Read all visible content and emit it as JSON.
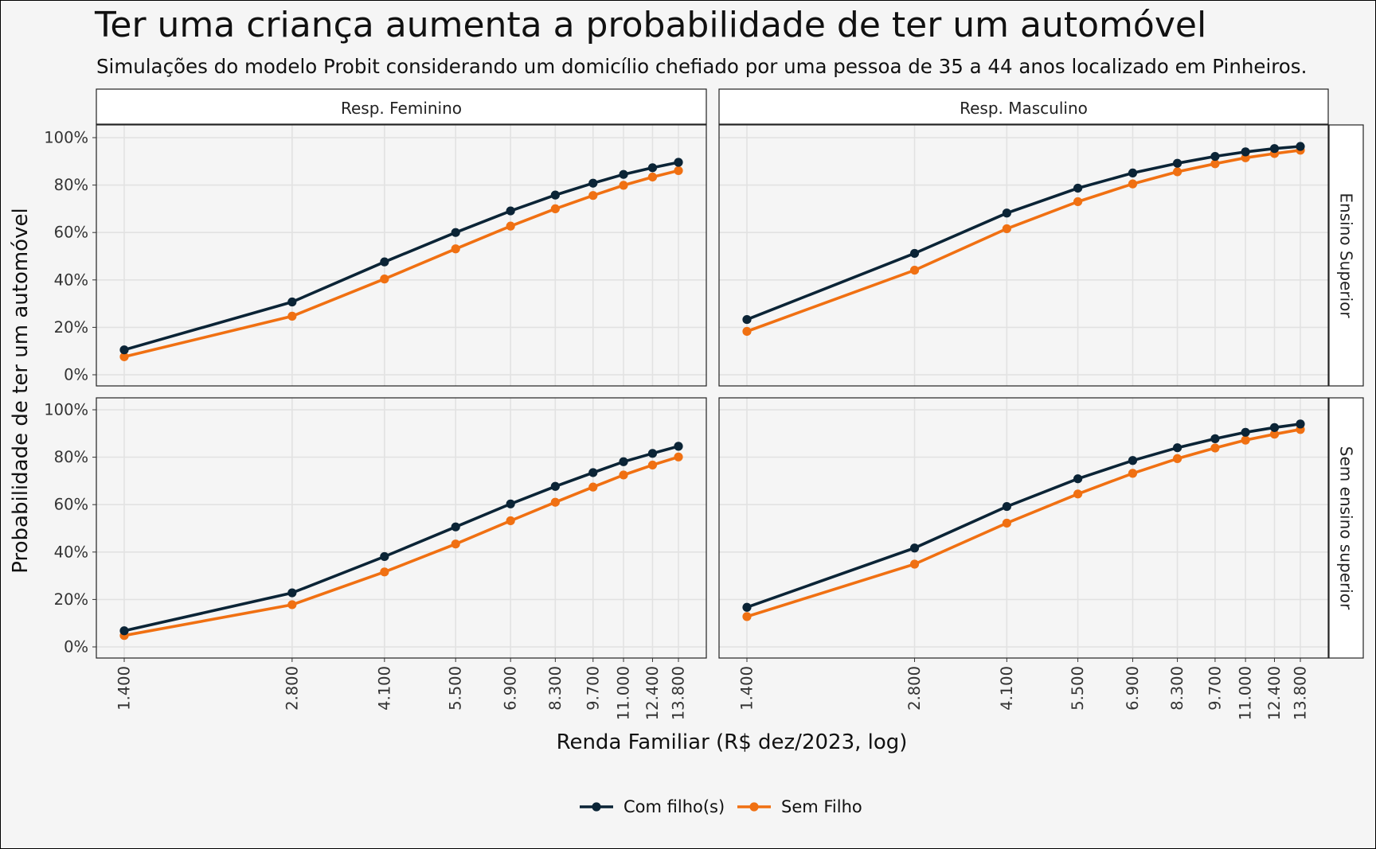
{
  "title": "Ter uma criança aumenta a probabilidade de ter um automóvel",
  "subtitle": "Simulações do modelo Probit considerando um domicílio chefiado por uma pessoa de 35 a 44 anos localizado em Pinheiros.",
  "colors": {
    "com": "#0b2436",
    "sem": "#f07012"
  },
  "chart_data": {
    "type": "line",
    "xlabel": "Renda Familiar (R$ dez/2023, log)",
    "ylabel": "Probabilidade de ter um automóvel",
    "x_scale": "log",
    "x": [
      1400,
      2800,
      4100,
      5500,
      6900,
      8300,
      9700,
      11000,
      12400,
      13800
    ],
    "x_tick_labels": [
      "1.400",
      "2.800",
      "4.100",
      "5.500",
      "6.900",
      "8.300",
      "9.700",
      "11.000",
      "12.400",
      "13.800"
    ],
    "y_tick_labels": [
      "0%",
      "20%",
      "40%",
      "60%",
      "80%",
      "100%"
    ],
    "ylim": [
      0,
      100
    ],
    "y_unit": "%",
    "grid": true,
    "legend_position": "bottom",
    "legend": [
      "Com filho(s)",
      "Sem Filho"
    ],
    "column_facets": [
      "Resp. Feminino",
      "Resp. Masculino"
    ],
    "row_facets": [
      "Ensino Superior",
      "Sem ensino superior"
    ],
    "panels": [
      {
        "col": "Resp. Feminino",
        "row": "Ensino Superior",
        "series": [
          {
            "name": "Com filho(s)",
            "values": [
              10.5,
              30.7,
              47.6,
              60.0,
              69.1,
              75.8,
              80.8,
              84.5,
              87.3,
              89.6
            ]
          },
          {
            "name": "Sem Filho",
            "values": [
              7.6,
              24.7,
              40.4,
              53.1,
              62.7,
              70.0,
              75.6,
              79.9,
              83.4,
              86.1
            ]
          }
        ]
      },
      {
        "col": "Resp. Masculino",
        "row": "Ensino Superior",
        "series": [
          {
            "name": "Com filho(s)",
            "values": [
              23.3,
              51.2,
              68.2,
              78.7,
              85.1,
              89.2,
              92.1,
              94.0,
              95.4,
              96.3
            ]
          },
          {
            "name": "Sem Filho",
            "values": [
              18.3,
              44.1,
              61.6,
              73.0,
              80.5,
              85.6,
              89.0,
              91.5,
              93.3,
              94.7
            ]
          }
        ]
      },
      {
        "col": "Resp. Feminino",
        "row": "Sem ensino superior",
        "series": [
          {
            "name": "Com filho(s)",
            "values": [
              6.8,
              22.8,
              38.1,
              50.6,
              60.3,
              67.7,
              73.5,
              78.1,
              81.6,
              84.6
            ]
          },
          {
            "name": "Sem Filho",
            "values": [
              4.8,
              17.8,
              31.6,
              43.4,
              53.2,
              61.0,
              67.4,
              72.5,
              76.7,
              80.1
            ]
          }
        ]
      },
      {
        "col": "Resp. Masculino",
        "row": "Sem ensino superior",
        "series": [
          {
            "name": "Com filho(s)",
            "values": [
              16.7,
              41.7,
              59.2,
              70.9,
              78.6,
              84.0,
              87.8,
              90.5,
              92.5,
              94.0
            ]
          },
          {
            "name": "Sem Filho",
            "values": [
              12.8,
              34.9,
              52.2,
              64.5,
              73.2,
              79.4,
              83.9,
              87.2,
              89.7,
              91.7
            ]
          }
        ]
      }
    ]
  }
}
